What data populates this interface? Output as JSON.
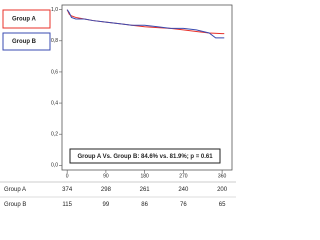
{
  "chart_data": {
    "type": "line",
    "annotation": "Group A Vs. Group B: 84.6% vs. 81.9%; p = 0.61",
    "series": [
      {
        "name": "Group A",
        "color": "#e8302a",
        "x": [
          0,
          5,
          10,
          20,
          40,
          60,
          90,
          120,
          150,
          180,
          210,
          240,
          270,
          300,
          330,
          360,
          365
        ],
        "values": [
          1.0,
          0.97,
          0.96,
          0.95,
          0.94,
          0.93,
          0.92,
          0.91,
          0.9,
          0.89,
          0.885,
          0.88,
          0.87,
          0.86,
          0.85,
          0.846,
          0.846
        ]
      },
      {
        "name": "Group B",
        "color": "#3a4bb0",
        "x": [
          0,
          5,
          10,
          20,
          40,
          60,
          90,
          120,
          150,
          180,
          210,
          240,
          270,
          300,
          330,
          345,
          365
        ],
        "values": [
          1.0,
          0.98,
          0.95,
          0.94,
          0.94,
          0.93,
          0.92,
          0.91,
          0.9,
          0.9,
          0.89,
          0.88,
          0.88,
          0.87,
          0.85,
          0.819,
          0.819
        ]
      }
    ],
    "xlim": [
      -12,
      383
    ],
    "xticks": [
      0,
      90,
      180,
      270,
      360
    ],
    "ylim": [
      -0.03,
      1.03
    ],
    "yticks": [
      {
        "value": 0,
        "label": "0,0"
      },
      {
        "value": 0.2,
        "label": "0,2"
      },
      {
        "value": 0.4,
        "label": "0,4"
      },
      {
        "value": 0.6,
        "label": "0,6"
      },
      {
        "value": 0.8,
        "label": "0,8"
      },
      {
        "value": 1.0,
        "label": "1,0"
      }
    ],
    "risk_table": {
      "rows": [
        {
          "name": "Group A",
          "values": [
            374,
            298,
            261,
            240,
            200
          ]
        },
        {
          "name": "Group B",
          "values": [
            115,
            99,
            86,
            76,
            65
          ]
        }
      ]
    }
  }
}
